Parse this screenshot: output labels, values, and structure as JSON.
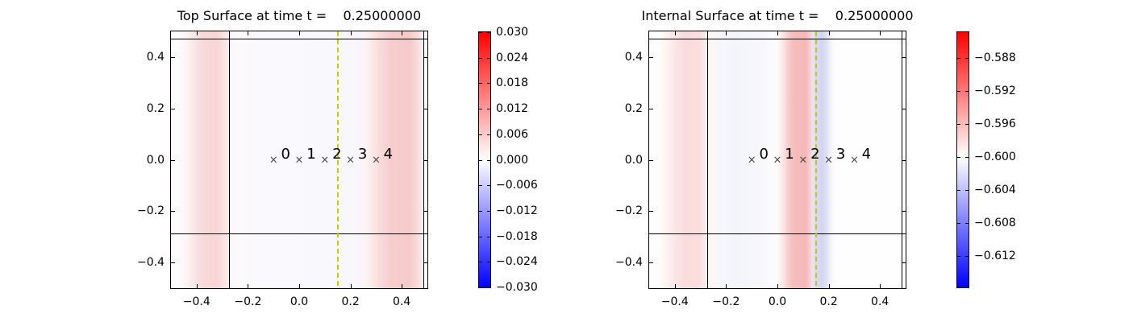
{
  "figure": {
    "background": "#ffffff"
  },
  "chart_data": [
    {
      "id": "top-surface",
      "type": "heatmap",
      "title": "Top Surface at time t =    0.25000000",
      "time": 0.25,
      "xlim": [
        -0.5,
        0.5
      ],
      "ylim": [
        -0.5,
        0.5
      ],
      "x_ticks": [
        -0.4,
        -0.2,
        0.0,
        0.2,
        0.4
      ],
      "x_tick_labels": [
        "−0.4",
        "−0.2",
        "0.0",
        "0.2",
        "0.4"
      ],
      "y_ticks": [
        0.4,
        0.2,
        0.0,
        -0.2,
        -0.4
      ],
      "y_tick_labels": [
        "0.4",
        "0.2",
        "0.0",
        "−0.2",
        "−0.4"
      ],
      "grid": false,
      "colormap": "blue-white-red",
      "marker_symbol": "×",
      "markers": [
        {
          "label": "0",
          "x": -0.1,
          "y": 0.0
        },
        {
          "label": "1",
          "x": 0.0,
          "y": 0.0
        },
        {
          "label": "2",
          "x": 0.1,
          "y": 0.0
        },
        {
          "label": "3",
          "x": 0.2,
          "y": 0.0
        },
        {
          "label": "4",
          "x": 0.3,
          "y": 0.0
        }
      ],
      "dashed_line": {
        "x": 0.15,
        "style": "dashed",
        "color": "#c8c800"
      },
      "domain_lines": {
        "vertical_x": [
          -0.275,
          0.483
        ],
        "horizontal_y": [
          0.472,
          -0.288
        ],
        "color": "#000000"
      },
      "field_description": "vertical bands, value ~0 everywhere (white) with weak positive (pink) bands near x=-0.36 and x=0.41, very weak negative (pale blue) between x=0 and x=0.35",
      "field_gradient_stops": [
        [
          0,
          "#fefefe"
        ],
        [
          4,
          "#fefafa"
        ],
        [
          7,
          "#fdf0f0"
        ],
        [
          10,
          "#fae2e2"
        ],
        [
          13,
          "#f8d8d8"
        ],
        [
          18,
          "#f8d6d6"
        ],
        [
          20,
          "#fadfdf"
        ],
        [
          22,
          "#fcebeb"
        ],
        [
          23.5,
          "#fdf7f7"
        ],
        [
          26,
          "#fcfafc"
        ],
        [
          32,
          "#fafafd"
        ],
        [
          45,
          "#fafafe"
        ],
        [
          55,
          "#f9f9fd"
        ],
        [
          62,
          "#f8f8fd"
        ],
        [
          72,
          "#f9f7fb"
        ],
        [
          77,
          "#fcf1f1"
        ],
        [
          81,
          "#f9dcdc"
        ],
        [
          86,
          "#f6cccc"
        ],
        [
          93,
          "#f6caca"
        ],
        [
          96,
          "#f9dada"
        ],
        [
          98,
          "#fcebeb"
        ],
        [
          99,
          "#fefcfc"
        ],
        [
          100,
          "#fefefe"
        ]
      ],
      "colorbar": {
        "min": -0.03,
        "max": 0.03,
        "tick_values": [
          0.03,
          0.024,
          0.018,
          0.012,
          0.006,
          0.0,
          -0.006,
          -0.012,
          -0.018,
          -0.024,
          -0.03
        ],
        "tick_labels": [
          "0.030",
          "0.024",
          "0.018",
          "0.012",
          "0.006",
          "0.000",
          "−0.006",
          "−0.012",
          "−0.018",
          "−0.024",
          "−0.030"
        ],
        "tick_fracs": [
          0,
          10,
          20,
          30,
          40,
          50,
          60,
          70,
          80,
          90,
          100
        ],
        "gradient_stops": [
          [
            0,
            "#ff0000"
          ],
          [
            50,
            "#ffffff"
          ],
          [
            100,
            "#0000ff"
          ]
        ]
      }
    },
    {
      "id": "internal-surface",
      "type": "heatmap",
      "title": "Internal Surface at time t =    0.25000000",
      "time": 0.25,
      "xlim": [
        -0.5,
        0.5
      ],
      "ylim": [
        -0.5,
        0.5
      ],
      "x_ticks": [
        -0.4,
        -0.2,
        0.0,
        0.2,
        0.4
      ],
      "x_tick_labels": [
        "−0.4",
        "−0.2",
        "0.0",
        "0.2",
        "0.4"
      ],
      "y_ticks": [
        0.4,
        0.2,
        0.0,
        -0.2,
        -0.4
      ],
      "y_tick_labels": [
        "0.4",
        "0.2",
        "0.0",
        "−0.2",
        "−0.4"
      ],
      "grid": false,
      "colormap": "blue-white-red",
      "marker_symbol": "×",
      "markers": [
        {
          "label": "0",
          "x": -0.1,
          "y": 0.0
        },
        {
          "label": "1",
          "x": 0.0,
          "y": 0.0
        },
        {
          "label": "2",
          "x": 0.1,
          "y": 0.0
        },
        {
          "label": "3",
          "x": 0.2,
          "y": 0.0
        },
        {
          "label": "4",
          "x": 0.3,
          "y": 0.0
        }
      ],
      "dashed_line": {
        "x": 0.15,
        "style": "dashed",
        "color": "#c8c800"
      },
      "domain_lines": {
        "vertical_x": [
          -0.275,
          0.483
        ],
        "horizontal_y": [
          0.472,
          -0.288
        ],
        "color": "#000000"
      },
      "field_description": "vertical bands around mean -0.600: pink band near x=-0.38, faint blue -0.25..0, strong pink (≈-0.592) band x=0.05..0.12, blue-lavender (≈-0.604) band x=0.13..0.19, white elsewhere",
      "field_gradient_stops": [
        [
          0,
          "#fefefe"
        ],
        [
          4,
          "#fefcfc"
        ],
        [
          7,
          "#fdf2f2"
        ],
        [
          10,
          "#fbe6e6"
        ],
        [
          14,
          "#fadcdc"
        ],
        [
          19,
          "#fadddd"
        ],
        [
          21.5,
          "#fbe8e8"
        ],
        [
          23,
          "#fdf4f1"
        ],
        [
          25,
          "#fbf7f7"
        ],
        [
          28,
          "#f6f6fc"
        ],
        [
          34,
          "#f4f5fb"
        ],
        [
          42,
          "#f6f6fc"
        ],
        [
          47,
          "#fafafd"
        ],
        [
          50,
          "#fefcfc"
        ],
        [
          52,
          "#fbe8e8"
        ],
        [
          54,
          "#f8d0d0"
        ],
        [
          56,
          "#f6bebe"
        ],
        [
          61,
          "#f5b8b8"
        ],
        [
          62.5,
          "#f8caca"
        ],
        [
          63.8,
          "#ece4f0"
        ],
        [
          65,
          "#d8d9f2"
        ],
        [
          67.5,
          "#d4d5f0"
        ],
        [
          69,
          "#dee0f4"
        ],
        [
          70.5,
          "#f0f0fa"
        ],
        [
          72,
          "#fcfcfe"
        ],
        [
          75,
          "#fefefe"
        ],
        [
          100,
          "#fefefe"
        ]
      ],
      "colorbar": {
        "min": -0.6158,
        "max": -0.5849,
        "tick_values": [
          -0.588,
          -0.592,
          -0.596,
          -0.6,
          -0.604,
          -0.608,
          -0.612
        ],
        "tick_labels": [
          "−0.588",
          "−0.592",
          "−0.596",
          "−0.600",
          "−0.604",
          "−0.608",
          "−0.612"
        ],
        "tick_fracs": [
          10.0,
          23.0,
          35.9,
          48.9,
          61.8,
          74.8,
          87.7
        ],
        "gradient_stops": [
          [
            0,
            "#ff0000"
          ],
          [
            49,
            "#ffffff"
          ],
          [
            100,
            "#0000ff"
          ]
        ]
      }
    }
  ]
}
